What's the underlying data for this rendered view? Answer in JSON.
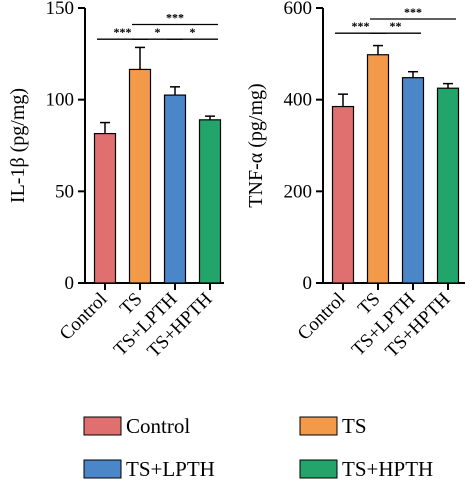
{
  "chart_data": [
    {
      "type": "bar",
      "ylabel": "IL-1β (pg/mg)",
      "ylim": [
        0,
        150
      ],
      "yticks": [
        0,
        50,
        100,
        150
      ],
      "categories": [
        "Control",
        "TS",
        "TS+LPTH",
        "TS+HPTH"
      ],
      "values": [
        81.5,
        116.5,
        102.5,
        89
      ],
      "errors": [
        6,
        12,
        4.5,
        2
      ],
      "significance": [
        {
          "from": 0,
          "to": 1,
          "label": "***",
          "y": 133
        },
        {
          "from": 1,
          "to": 2,
          "label": "*",
          "y": 133
        },
        {
          "from": 2,
          "to": 3,
          "label": "*",
          "y": 133
        },
        {
          "from": 1,
          "to": 3,
          "label": "***",
          "y": 141
        }
      ]
    },
    {
      "type": "bar",
      "ylabel": "TNF-α (pg/mg)",
      "ylim": [
        0,
        600
      ],
      "yticks": [
        0,
        200,
        400,
        600
      ],
      "categories": [
        "Control",
        "TS",
        "TS+LPTH",
        "TS+HPTH"
      ],
      "values": [
        385,
        498,
        448,
        425
      ],
      "errors": [
        27,
        20,
        13,
        10
      ],
      "significance": [
        {
          "from": 0,
          "to": 1,
          "label": "***",
          "y": 545
        },
        {
          "from": 1,
          "to": 2,
          "label": "**",
          "y": 545
        },
        {
          "from": 1,
          "to": 3,
          "label": "***",
          "y": 576
        }
      ]
    }
  ],
  "legend": [
    {
      "label": "Control",
      "color": "#e07070"
    },
    {
      "label": "TS",
      "color": "#f2994a"
    },
    {
      "label": "TS+LPTH",
      "color": "#4a86c8"
    },
    {
      "label": "TS+HPTH",
      "color": "#22a46a"
    }
  ]
}
